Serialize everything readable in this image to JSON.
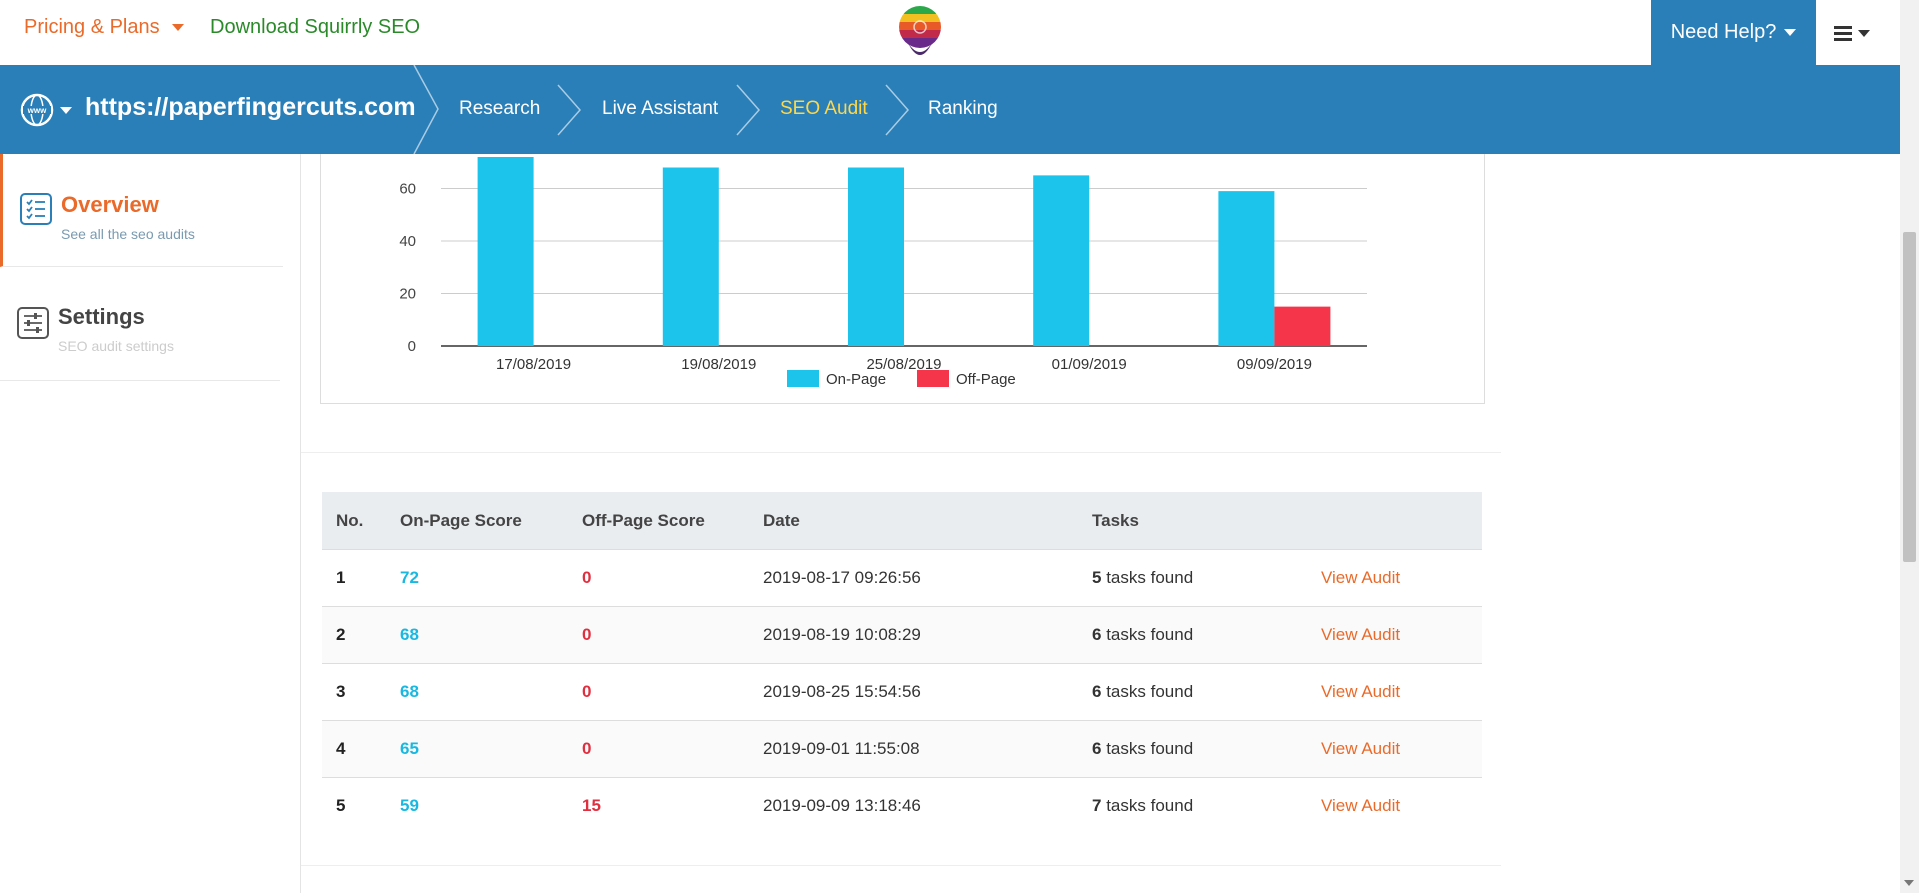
{
  "topbar": {
    "pricing_label": "Pricing & Plans",
    "download_label": "Download Squirrly SEO",
    "need_help_label": "Need Help?",
    "accent_color": "#ea6a2a",
    "download_color": "#2a8a2a"
  },
  "nav": {
    "site_url": "https://paperfingercuts.com",
    "crumbs": [
      {
        "label": "Research"
      },
      {
        "label": "Live Assistant"
      },
      {
        "label": "SEO Audit"
      },
      {
        "label": "Ranking"
      }
    ],
    "active_crumb": "SEO Audit",
    "bg_color": "#2a7fb8"
  },
  "sidebar": {
    "items": [
      {
        "title": "Overview",
        "subtitle": "See all the seo audits"
      },
      {
        "title": "Settings",
        "subtitle": "SEO audit settings"
      }
    ]
  },
  "chart_data": {
    "type": "bar",
    "categories": [
      "17/08/2019",
      "19/08/2019",
      "25/08/2019",
      "01/09/2019",
      "09/09/2019"
    ],
    "series": [
      {
        "name": "On-Page",
        "values": [
          72,
          68,
          68,
          65,
          59
        ],
        "color": "#1cc4ec"
      },
      {
        "name": "Off-Page",
        "values": [
          0,
          0,
          0,
          0,
          15
        ],
        "color": "#f5354a"
      }
    ],
    "yticks": [
      0,
      20,
      40,
      60
    ],
    "ylim": [
      0,
      72
    ],
    "grid": true,
    "legend": "bottom"
  },
  "table": {
    "headers": [
      "No.",
      "On-Page Score",
      "Off-Page Score",
      "Date",
      "Tasks",
      ""
    ],
    "rows": [
      {
        "no": "1",
        "onpage": "72",
        "offpage": "0",
        "date": "2019-08-17 09:26:56",
        "tasks_count": "5",
        "tasks_text": "tasks found",
        "action": "View Audit"
      },
      {
        "no": "2",
        "onpage": "68",
        "offpage": "0",
        "date": "2019-08-19 10:08:29",
        "tasks_count": "6",
        "tasks_text": "tasks found",
        "action": "View Audit"
      },
      {
        "no": "3",
        "onpage": "68",
        "offpage": "0",
        "date": "2019-08-25 15:54:56",
        "tasks_count": "6",
        "tasks_text": "tasks found",
        "action": "View Audit"
      },
      {
        "no": "4",
        "onpage": "65",
        "offpage": "0",
        "date": "2019-09-01 11:55:08",
        "tasks_count": "6",
        "tasks_text": "tasks found",
        "action": "View Audit"
      },
      {
        "no": "5",
        "onpage": "59",
        "offpage": "15",
        "date": "2019-09-09 13:18:46",
        "tasks_count": "7",
        "tasks_text": "tasks found",
        "action": "View Audit"
      }
    ]
  }
}
